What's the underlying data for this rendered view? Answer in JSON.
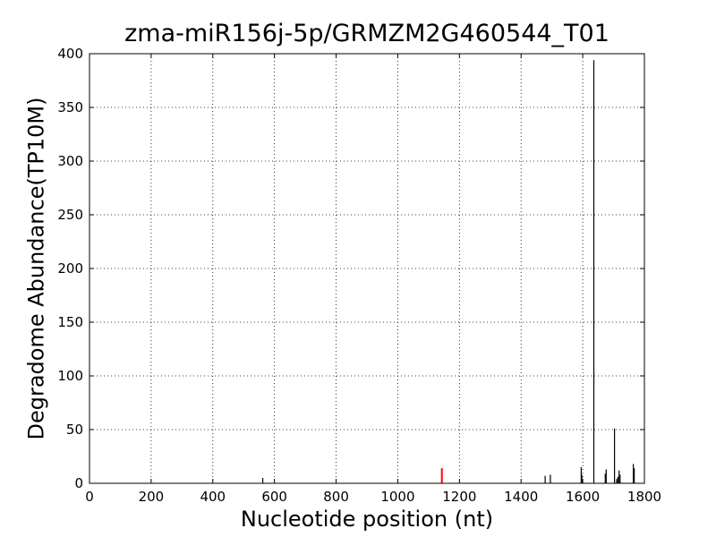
{
  "chart_data": {
    "type": "bar",
    "title": "zma-miR156j-5p/GRMZM2G460544_T01",
    "xlabel": "Nucleotide position (nt)",
    "ylabel": "Degradome Abundance(TP10M)",
    "xlim": [
      0,
      1800
    ],
    "ylim": [
      0,
      400
    ],
    "xticks": [
      0,
      200,
      400,
      600,
      800,
      1000,
      1200,
      1400,
      1600,
      1800
    ],
    "yticks": [
      0,
      50,
      100,
      150,
      200,
      250,
      300,
      350,
      400
    ],
    "grid": true,
    "colors": {
      "default": "#000000",
      "highlight": "#ff0000"
    },
    "series": [
      {
        "values": [
          {
            "x": 562,
            "y": 5
          },
          {
            "x": 1478,
            "y": 7
          },
          {
            "x": 1495,
            "y": 8
          },
          {
            "x": 1595,
            "y": 15
          },
          {
            "x": 1597,
            "y": 8
          },
          {
            "x": 1636,
            "y": 394
          },
          {
            "x": 1673,
            "y": 9
          },
          {
            "x": 1676,
            "y": 13
          },
          {
            "x": 1703,
            "y": 51
          },
          {
            "x": 1710,
            "y": 4
          },
          {
            "x": 1714,
            "y": 6
          },
          {
            "x": 1718,
            "y": 12
          },
          {
            "x": 1721,
            "y": 8
          },
          {
            "x": 1764,
            "y": 18
          },
          {
            "x": 1767,
            "y": 14
          }
        ]
      },
      {
        "highlight": true,
        "values": [
          {
            "x": 1143,
            "y": 14
          }
        ]
      }
    ]
  }
}
